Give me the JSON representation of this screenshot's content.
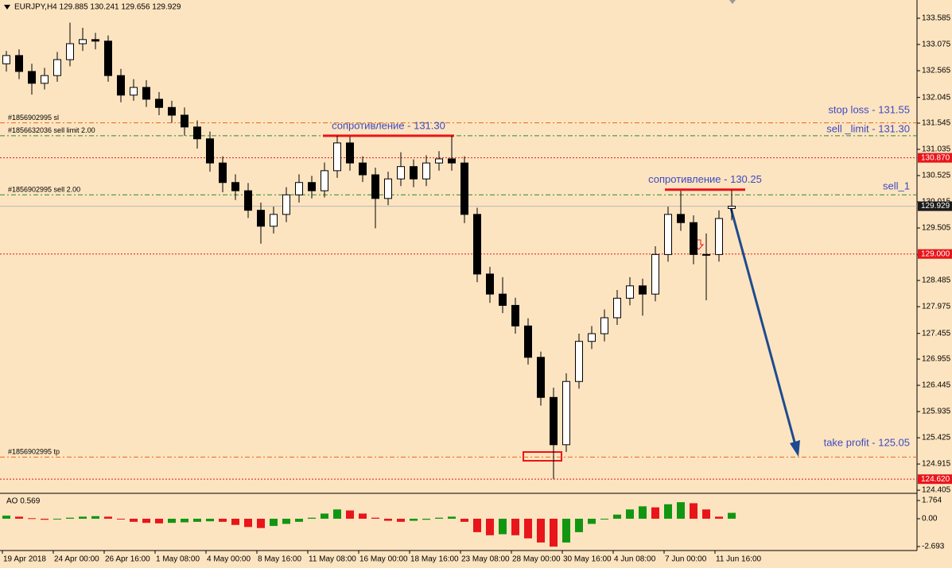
{
  "chart_data": [
    {
      "type": "candlestick",
      "title": "EURJPY,H4  129.885 130.241 129.656 129.929",
      "categories": [
        "19 Apr 2018",
        null,
        null,
        null,
        "24 Apr 00:00",
        null,
        null,
        null,
        "26 Apr 16:00",
        null,
        null,
        null,
        "1 May 08:00",
        null,
        null,
        null,
        "4 May 00:00",
        null,
        null,
        null,
        "8 May 16:00",
        null,
        null,
        null,
        "11 May 08:00",
        null,
        null,
        null,
        "16 May 00:00",
        null,
        null,
        null,
        "18 May 16:00",
        null,
        null,
        null,
        "23 May 08:00",
        null,
        null,
        null,
        "28 May 00:00",
        null,
        null,
        null,
        "30 May 16:00",
        null,
        null,
        null,
        "4 Jun 08:00",
        null,
        null,
        null,
        "7 Jun 00:00",
        null,
        null,
        null,
        "11 Jun 16:00",
        null
      ],
      "open": [
        132.7,
        132.86,
        132.55,
        132.32,
        132.47,
        132.78,
        133.09,
        133.17,
        133.14,
        132.47,
        132.09,
        132.24,
        132.01,
        131.85,
        131.7,
        131.47,
        131.24,
        130.77,
        130.39,
        130.23,
        129.85,
        129.54,
        129.77,
        130.15,
        130.39,
        130.23,
        130.62,
        131.16,
        130.77,
        130.54,
        130.08,
        130.46,
        130.7,
        130.46,
        130.77,
        130.85,
        130.77,
        129.77,
        128.61,
        128.22,
        128.0,
        127.6,
        126.99,
        126.21,
        125.29,
        126.52,
        127.3,
        127.45,
        127.76,
        128.14,
        128.38,
        128.22,
        128.99,
        129.77,
        129.61,
        128.99,
        128.99,
        129.885
      ],
      "high": [
        132.95,
        132.98,
        132.7,
        132.62,
        132.93,
        133.5,
        133.4,
        133.3,
        133.25,
        132.6,
        132.4,
        132.38,
        132.15,
        131.98,
        131.85,
        131.6,
        131.38,
        130.9,
        130.55,
        130.38,
        130.0,
        129.92,
        130.3,
        130.55,
        130.52,
        130.78,
        131.3,
        131.28,
        130.9,
        130.68,
        130.6,
        130.98,
        130.84,
        130.92,
        131.0,
        131.3,
        130.9,
        129.9,
        128.75,
        128.55,
        128.15,
        127.75,
        127.1,
        126.4,
        126.68,
        127.45,
        127.6,
        127.92,
        128.3,
        128.55,
        128.52,
        129.15,
        129.92,
        130.23,
        129.75,
        129.4,
        129.85,
        130.241
      ],
      "low": [
        132.55,
        132.4,
        132.1,
        132.2,
        132.35,
        132.65,
        132.95,
        132.98,
        132.35,
        131.95,
        131.98,
        131.86,
        131.7,
        131.55,
        131.3,
        131.05,
        130.6,
        130.2,
        130.05,
        129.7,
        129.2,
        129.4,
        129.62,
        130.0,
        130.08,
        130.1,
        130.48,
        130.62,
        130.4,
        129.5,
        129.95,
        130.32,
        130.3,
        130.32,
        130.62,
        130.62,
        129.6,
        128.45,
        128.05,
        127.85,
        127.45,
        126.85,
        126.05,
        124.62,
        125.15,
        126.38,
        127.15,
        127.3,
        127.62,
        128.0,
        127.8,
        128.08,
        128.85,
        129.45,
        128.8,
        128.1,
        128.85,
        129.656
      ],
      "close": [
        132.86,
        132.55,
        132.32,
        132.47,
        132.78,
        133.09,
        133.17,
        133.14,
        132.47,
        132.09,
        132.24,
        132.01,
        131.85,
        131.7,
        131.47,
        131.24,
        130.77,
        130.39,
        130.23,
        129.85,
        129.54,
        129.77,
        130.15,
        130.39,
        130.23,
        130.62,
        131.16,
        130.77,
        130.54,
        130.08,
        130.46,
        130.7,
        130.46,
        130.77,
        130.85,
        130.77,
        129.77,
        128.61,
        128.22,
        128.0,
        127.6,
        126.99,
        126.21,
        125.29,
        126.52,
        127.3,
        127.45,
        127.76,
        128.14,
        128.38,
        128.22,
        128.99,
        129.77,
        129.61,
        128.99,
        128.99,
        129.69,
        129.929
      ],
      "ylim": [
        124.36,
        133.94
      ],
      "yticks": [
        133.585,
        133.075,
        132.565,
        132.045,
        131.545,
        131.035,
        130.525,
        130.015,
        129.505,
        128.985,
        128.485,
        127.975,
        127.455,
        126.955,
        126.445,
        125.935,
        125.425,
        124.915,
        124.405
      ],
      "price_markers": [
        {
          "value": 130.87,
          "label": "130.870",
          "color": "#e8151b"
        },
        {
          "value": 129.929,
          "label": "129.929",
          "color": "#1a1a1a"
        },
        {
          "value": 129,
          "label": "129.000",
          "color": "#e8151b"
        },
        {
          "value": 124.62,
          "label": "124.620",
          "color": "#e8151b"
        }
      ],
      "order_lines": [
        {
          "label": "#1856902995 sl",
          "value": 131.55,
          "color": "#e06a1a"
        },
        {
          "label": "#1856632036 sell limit 2.00",
          "value": 131.3,
          "color": "#2a8a2a"
        },
        {
          "label": "#1856902995 sell 2.00",
          "value": 130.15,
          "color": "#2a8a2a"
        },
        {
          "label": "#1856902995 tp",
          "value": 125.05,
          "color": "#e06a1a"
        }
      ],
      "resistance": [
        {
          "label": "сопротивление - 131.30",
          "value": 131.3
        },
        {
          "label": "сопротивление - 130.25",
          "value": 130.25
        }
      ],
      "annotations": [
        "stop loss - 131.55",
        "sell _limit - 131.30",
        "sell_1",
        "take profit - 125.05"
      ]
    },
    {
      "type": "bar",
      "title": "AO 0.569",
      "values": [
        0.3,
        0.2,
        0.05,
        -0.1,
        -0.05,
        0.1,
        0.2,
        0.25,
        0.2,
        0.0,
        -0.3,
        -0.4,
        -0.45,
        -0.4,
        -0.35,
        -0.3,
        -0.25,
        -0.3,
        -0.6,
        -0.8,
        -0.9,
        -0.7,
        -0.5,
        -0.3,
        0.1,
        0.5,
        0.9,
        0.8,
        0.5,
        0.1,
        -0.2,
        -0.3,
        -0.2,
        -0.1,
        0.1,
        0.2,
        -0.3,
        -1.3,
        -1.6,
        -1.5,
        -1.6,
        -1.9,
        -2.3,
        -2.7,
        -2.3,
        -1.3,
        -0.5,
        0.0,
        0.4,
        0.9,
        1.2,
        1.1,
        1.4,
        1.6,
        1.5,
        0.9,
        0.2,
        0.569
      ],
      "up_color": "#129612",
      "down_color": "#e8151b",
      "ylim": [
        -3.0,
        2.38
      ],
      "yticks": [
        1.764,
        {
          "value": 0,
          "label": "0.00"
        },
        -2.693
      ]
    }
  ]
}
